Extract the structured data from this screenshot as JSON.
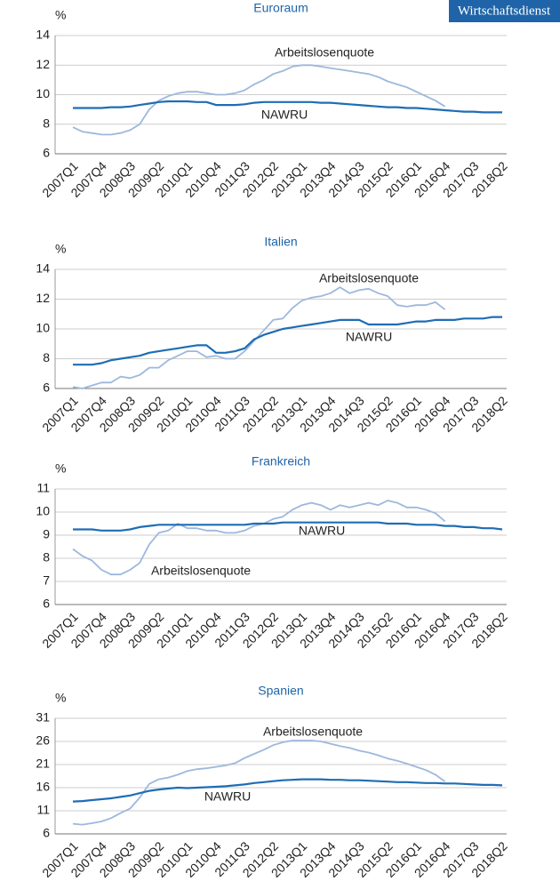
{
  "brand": "Wirtschaftsdienst",
  "chart_data": [
    {
      "type": "line",
      "title": "Euroraum",
      "y_label": "%",
      "categories": [
        "2007Q1",
        null,
        null,
        "2007Q4",
        null,
        null,
        "2008Q3",
        null,
        null,
        "2009Q2",
        null,
        null,
        "2010Q1",
        null,
        null,
        "2010Q4",
        null,
        null,
        "2011Q3",
        null,
        null,
        "2012Q2",
        null,
        null,
        "2013Q1",
        null,
        null,
        "2013Q4",
        null,
        null,
        "2014Q3",
        null,
        null,
        "2015Q2",
        null,
        null,
        "2016Q1",
        null,
        null,
        "2016Q4",
        null,
        null,
        "2017Q3",
        null,
        null,
        "2018Q2"
      ],
      "ylim": [
        6,
        14
      ],
      "yticks": [
        6,
        8,
        10,
        12,
        14
      ],
      "grid": true,
      "series": [
        {
          "name": "Arbeitslosenquote",
          "color": "#9db8dd",
          "values": [
            7.8,
            7.5,
            7.4,
            7.3,
            7.3,
            7.4,
            7.6,
            8.0,
            9.0,
            9.6,
            9.9,
            10.1,
            10.2,
            10.2,
            10.1,
            10.0,
            10.0,
            10.1,
            10.3,
            10.7,
            11.0,
            11.4,
            11.6,
            11.9,
            12.0,
            12.0,
            11.9,
            11.8,
            11.7,
            11.6,
            11.5,
            11.4,
            11.2,
            10.9,
            10.7,
            10.5,
            10.2,
            9.9,
            9.6,
            9.2,
            null,
            null,
            null,
            null,
            null,
            null
          ]
        },
        {
          "name": "NAWRU",
          "color": "#1f6db4",
          "values": [
            9.1,
            9.1,
            9.1,
            9.1,
            9.15,
            9.15,
            9.2,
            9.3,
            9.4,
            9.5,
            9.55,
            9.55,
            9.55,
            9.5,
            9.5,
            9.3,
            9.3,
            9.3,
            9.35,
            9.45,
            9.5,
            9.5,
            9.5,
            9.5,
            9.5,
            9.5,
            9.45,
            9.45,
            9.4,
            9.35,
            9.3,
            9.25,
            9.2,
            9.15,
            9.15,
            9.1,
            9.1,
            9.05,
            9.0,
            8.95,
            8.9,
            8.85,
            8.85,
            8.8,
            8.8,
            8.8
          ]
        }
      ]
    },
    {
      "type": "line",
      "title": "Italien",
      "y_label": "%",
      "categories": [
        "2007Q1",
        null,
        null,
        "2007Q4",
        null,
        null,
        "2008Q3",
        null,
        null,
        "2009Q2",
        null,
        null,
        "2010Q1",
        null,
        null,
        "2010Q4",
        null,
        null,
        "2011Q3",
        null,
        null,
        "2012Q2",
        null,
        null,
        "2013Q1",
        null,
        null,
        "2013Q4",
        null,
        null,
        "2014Q3",
        null,
        null,
        "2015Q2",
        null,
        null,
        "2016Q1",
        null,
        null,
        "2016Q4",
        null,
        null,
        "2017Q3",
        null,
        null,
        "2018Q2"
      ],
      "ylim": [
        6,
        14
      ],
      "yticks": [
        6,
        8,
        10,
        12,
        14
      ],
      "grid": true,
      "series": [
        {
          "name": "Arbeitslosenquote",
          "color": "#9db8dd",
          "values": [
            6.1,
            6.0,
            6.2,
            6.4,
            6.4,
            6.8,
            6.7,
            6.9,
            7.4,
            7.4,
            7.9,
            8.2,
            8.5,
            8.5,
            8.1,
            8.2,
            8.0,
            8.0,
            8.5,
            9.2,
            9.9,
            10.6,
            10.7,
            11.4,
            11.9,
            12.1,
            12.2,
            12.4,
            12.8,
            12.4,
            12.6,
            12.7,
            12.4,
            12.2,
            11.6,
            11.5,
            11.6,
            11.6,
            11.8,
            11.3,
            null,
            null,
            null,
            null,
            null,
            null
          ]
        },
        {
          "name": "NAWRU",
          "color": "#1f6db4",
          "values": [
            7.6,
            7.6,
            7.6,
            7.7,
            7.9,
            8.0,
            8.1,
            8.2,
            8.4,
            8.5,
            8.6,
            8.7,
            8.8,
            8.9,
            8.9,
            8.4,
            8.4,
            8.5,
            8.7,
            9.3,
            9.6,
            9.8,
            10.0,
            10.1,
            10.2,
            10.3,
            10.4,
            10.5,
            10.6,
            10.6,
            10.6,
            10.3,
            10.3,
            10.3,
            10.3,
            10.4,
            10.5,
            10.5,
            10.6,
            10.6,
            10.6,
            10.7,
            10.7,
            10.7,
            10.8,
            10.8
          ]
        }
      ]
    },
    {
      "type": "line",
      "title": "Frankreich",
      "y_label": "%",
      "categories": [
        "2007Q1",
        null,
        null,
        "2007Q4",
        null,
        null,
        "2008Q3",
        null,
        null,
        "2009Q2",
        null,
        null,
        "2010Q1",
        null,
        null,
        "2010Q4",
        null,
        null,
        "2011Q3",
        null,
        null,
        "2012Q2",
        null,
        null,
        "2013Q1",
        null,
        null,
        "2013Q4",
        null,
        null,
        "2014Q3",
        null,
        null,
        "2015Q2",
        null,
        null,
        "2016Q1",
        null,
        null,
        "2016Q4",
        null,
        null,
        "2017Q3",
        null,
        null,
        "2018Q2"
      ],
      "ylim": [
        6,
        11
      ],
      "yticks": [
        6,
        7,
        8,
        9,
        10,
        11
      ],
      "grid": true,
      "series": [
        {
          "name": "Arbeitslosenquote",
          "color": "#9db8dd",
          "values": [
            8.4,
            8.1,
            7.9,
            7.5,
            7.3,
            7.3,
            7.5,
            7.8,
            8.6,
            9.1,
            9.2,
            9.5,
            9.3,
            9.3,
            9.2,
            9.2,
            9.1,
            9.1,
            9.2,
            9.4,
            9.5,
            9.7,
            9.8,
            10.1,
            10.3,
            10.4,
            10.3,
            10.1,
            10.3,
            10.2,
            10.3,
            10.4,
            10.3,
            10.5,
            10.4,
            10.2,
            10.2,
            10.1,
            9.95,
            9.6,
            null,
            null,
            null,
            null,
            null,
            null
          ]
        },
        {
          "name": "NAWRU",
          "color": "#1f6db4",
          "values": [
            9.25,
            9.25,
            9.25,
            9.2,
            9.2,
            9.2,
            9.25,
            9.35,
            9.4,
            9.45,
            9.45,
            9.45,
            9.45,
            9.45,
            9.45,
            9.45,
            9.45,
            9.45,
            9.45,
            9.5,
            9.5,
            9.5,
            9.55,
            9.55,
            9.55,
            9.55,
            9.55,
            9.55,
            9.55,
            9.55,
            9.55,
            9.55,
            9.55,
            9.5,
            9.5,
            9.5,
            9.45,
            9.45,
            9.45,
            9.4,
            9.4,
            9.35,
            9.35,
            9.3,
            9.3,
            9.25
          ]
        }
      ]
    },
    {
      "type": "line",
      "title": "Spanien",
      "y_label": "%",
      "categories": [
        "2007Q1",
        null,
        null,
        "2007Q4",
        null,
        null,
        "2008Q3",
        null,
        null,
        "2009Q2",
        null,
        null,
        "2010Q1",
        null,
        null,
        "2010Q4",
        null,
        null,
        "2011Q3",
        null,
        null,
        "2012Q2",
        null,
        null,
        "2013Q1",
        null,
        null,
        "2013Q4",
        null,
        null,
        "2014Q3",
        null,
        null,
        "2015Q2",
        null,
        null,
        "2016Q1",
        null,
        null,
        "2016Q4",
        null,
        null,
        "2017Q3",
        null,
        null,
        "2018Q2"
      ],
      "ylim": [
        6,
        31
      ],
      "yticks": [
        6,
        11,
        16,
        21,
        26,
        31
      ],
      "grid": true,
      "series": [
        {
          "name": "Arbeitslosenquote",
          "color": "#9db8dd",
          "values": [
            8.2,
            8.0,
            8.3,
            8.7,
            9.4,
            10.5,
            11.5,
            13.8,
            16.8,
            17.8,
            18.2,
            18.8,
            19.6,
            20.0,
            20.2,
            20.5,
            20.8,
            21.3,
            22.4,
            23.3,
            24.2,
            25.2,
            25.8,
            26.2,
            26.2,
            26.2,
            26.0,
            25.5,
            25.0,
            24.6,
            24.0,
            23.6,
            23.0,
            22.3,
            21.8,
            21.2,
            20.5,
            19.8,
            18.8,
            17.3,
            null,
            null,
            null,
            null,
            null,
            null
          ]
        },
        {
          "name": "NAWRU",
          "color": "#1f6db4",
          "values": [
            13.0,
            13.1,
            13.3,
            13.5,
            13.7,
            14.0,
            14.3,
            14.8,
            15.3,
            15.6,
            15.8,
            16.0,
            15.9,
            16.0,
            16.1,
            16.2,
            16.3,
            16.5,
            16.7,
            17.0,
            17.2,
            17.4,
            17.6,
            17.7,
            17.8,
            17.8,
            17.8,
            17.7,
            17.7,
            17.6,
            17.6,
            17.5,
            17.4,
            17.3,
            17.2,
            17.2,
            17.1,
            17.0,
            17.0,
            16.9,
            16.9,
            16.8,
            16.7,
            16.6,
            16.6,
            16.5
          ]
        }
      ]
    }
  ]
}
